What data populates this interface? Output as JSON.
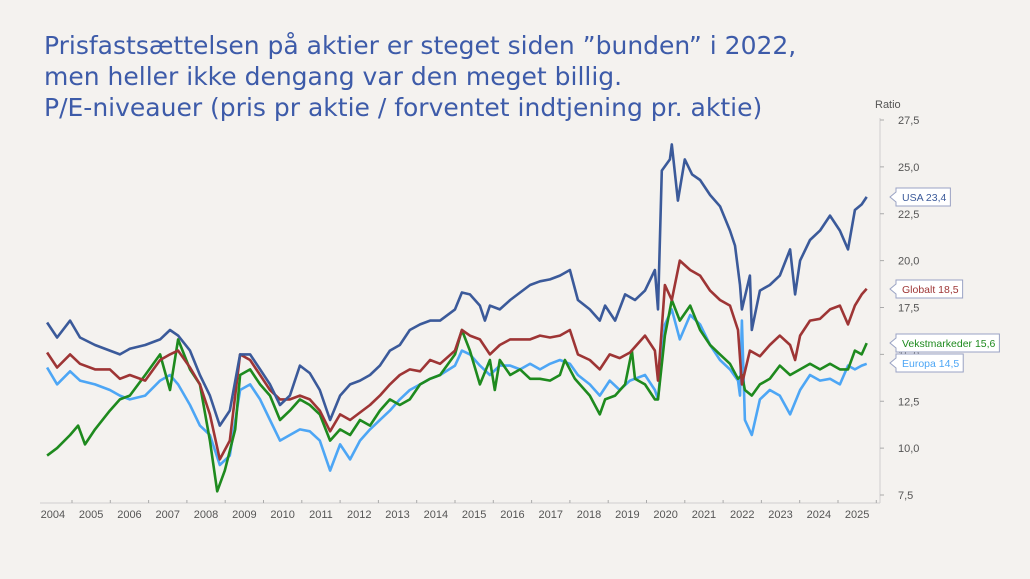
{
  "title_lines": [
    "Prisfastsættelsen på aktier er steget siden ”bunden” i 2022,",
    "men heller ikke dengang var den meget billig.",
    "P/E-niveauer (pris pr aktie / forventet indtjening pr. aktie)"
  ],
  "chart_data": {
    "type": "line",
    "title": "P/E-niveauer (pris pr aktie / forventet indtjening pr. aktie)",
    "ylabel": "Ratio",
    "xlabel": "",
    "ylim": [
      7.5,
      27.5
    ],
    "xlim": [
      2004,
      2026
    ],
    "yticks": [
      "27,5",
      "25,0",
      "22,5",
      "20,0",
      "17,5",
      "15,0",
      "12,5",
      "10,0",
      "7,5"
    ],
    "ytick_values": [
      27.5,
      25,
      22.5,
      20,
      17.5,
      15,
      12.5,
      10,
      7.5
    ],
    "xticks": [
      "2004",
      "2005",
      "2006",
      "2007",
      "2008",
      "2009",
      "2010",
      "2011",
      "2012",
      "2013",
      "2014",
      "2015",
      "2016",
      "2017",
      "2018",
      "2019",
      "2020",
      "2021",
      "2022",
      "2023",
      "2024",
      "2025"
    ],
    "grid": false,
    "legend": "end-of-line callouts on right",
    "series": [
      {
        "name": "USA",
        "label": "USA 23,4",
        "last": 23.4,
        "color": "#3b5a9a",
        "x": [
          2004.35,
          2004.61,
          2004.95,
          2005.21,
          2005.6,
          2005.99,
          2006.25,
          2006.51,
          2006.91,
          2007.3,
          2007.56,
          2007.77,
          2008.08,
          2008.34,
          2008.6,
          2008.86,
          2009.12,
          2009.39,
          2009.65,
          2009.91,
          2010.17,
          2010.43,
          2010.69,
          2010.95,
          2011.21,
          2011.47,
          2011.74,
          2012.0,
          2012.26,
          2012.52,
          2012.78,
          2013.04,
          2013.3,
          2013.56,
          2013.82,
          2014.09,
          2014.35,
          2014.61,
          2015.0,
          2015.18,
          2015.39,
          2015.65,
          2015.78,
          2015.91,
          2016.17,
          2016.44,
          2016.7,
          2016.96,
          2017.22,
          2017.48,
          2017.74,
          2018.0,
          2018.21,
          2018.52,
          2018.78,
          2018.92,
          2019.18,
          2019.44,
          2019.7,
          2019.96,
          2020.22,
          2020.3,
          2020.4,
          2020.61,
          2020.66,
          2020.82,
          2021.0,
          2021.19,
          2021.4,
          2021.66,
          2021.92,
          2022.18,
          2022.31,
          2022.44,
          2022.49,
          2022.7,
          2022.75,
          2022.96,
          2023.22,
          2023.48,
          2023.75,
          2023.88,
          2024.01,
          2024.27,
          2024.53,
          2024.79,
          2025.05,
          2025.26,
          2025.44,
          2025.62,
          2025.75
        ],
        "y": [
          16.7,
          15.9,
          16.8,
          15.9,
          15.5,
          15.2,
          15.0,
          15.3,
          15.5,
          15.8,
          16.3,
          16.0,
          15.2,
          13.9,
          12.8,
          11.2,
          12.0,
          15.0,
          15.0,
          14.2,
          13.4,
          12.3,
          12.8,
          14.4,
          14.0,
          13.1,
          11.5,
          12.8,
          13.4,
          13.6,
          13.9,
          14.4,
          15.2,
          15.5,
          16.3,
          16.6,
          16.8,
          16.8,
          17.4,
          18.3,
          18.2,
          17.6,
          16.8,
          17.6,
          17.4,
          17.9,
          18.3,
          18.7,
          18.9,
          19.0,
          19.2,
          19.5,
          17.9,
          17.4,
          16.8,
          17.6,
          16.8,
          18.2,
          17.9,
          18.4,
          19.5,
          17.4,
          24.8,
          25.4,
          26.2,
          23.2,
          25.4,
          24.6,
          24.3,
          23.5,
          22.9,
          21.6,
          20.8,
          18.7,
          17.4,
          19.2,
          16.3,
          18.4,
          18.7,
          19.2,
          20.6,
          18.2,
          20.0,
          21.1,
          21.6,
          22.4,
          21.6,
          20.6,
          22.7,
          23.0,
          23.4
        ]
      },
      {
        "name": "Globalt",
        "label": "Globalt 18,5",
        "last": 18.5,
        "color": "#9e3535",
        "x": [
          2004.35,
          2004.61,
          2004.95,
          2005.21,
          2005.6,
          2005.99,
          2006.25,
          2006.51,
          2006.91,
          2007.3,
          2007.56,
          2007.77,
          2008.08,
          2008.34,
          2008.6,
          2008.86,
          2009.12,
          2009.39,
          2009.65,
          2009.91,
          2010.17,
          2010.43,
          2010.69,
          2010.95,
          2011.21,
          2011.47,
          2011.74,
          2012.0,
          2012.26,
          2012.52,
          2012.78,
          2013.04,
          2013.3,
          2013.56,
          2013.82,
          2014.09,
          2014.35,
          2014.61,
          2015.0,
          2015.18,
          2015.39,
          2015.65,
          2015.91,
          2016.17,
          2016.44,
          2016.7,
          2016.96,
          2017.22,
          2017.48,
          2017.74,
          2018.0,
          2018.21,
          2018.52,
          2018.78,
          2019.04,
          2019.3,
          2019.57,
          2019.96,
          2020.22,
          2020.3,
          2020.48,
          2020.66,
          2020.87,
          2021.14,
          2021.4,
          2021.66,
          2021.92,
          2022.18,
          2022.39,
          2022.49,
          2022.7,
          2022.96,
          2023.22,
          2023.48,
          2023.75,
          2023.88,
          2024.01,
          2024.27,
          2024.53,
          2024.79,
          2025.05,
          2025.26,
          2025.44,
          2025.62,
          2025.75
        ],
        "y": [
          15.1,
          14.3,
          15.0,
          14.5,
          14.2,
          14.2,
          13.7,
          13.9,
          13.6,
          14.7,
          15.0,
          15.2,
          14.3,
          13.4,
          11.8,
          9.4,
          10.4,
          15.0,
          14.7,
          13.9,
          13.1,
          12.6,
          12.6,
          12.8,
          12.6,
          12.0,
          10.9,
          11.8,
          11.5,
          11.9,
          12.3,
          12.8,
          13.4,
          13.9,
          14.2,
          14.1,
          14.7,
          14.5,
          15.2,
          16.3,
          16.0,
          15.8,
          15.0,
          15.5,
          15.8,
          15.8,
          15.8,
          16.0,
          15.9,
          16.0,
          16.3,
          15.0,
          14.7,
          14.2,
          15.0,
          14.8,
          15.1,
          16.0,
          15.2,
          13.6,
          18.7,
          17.9,
          20.0,
          19.5,
          19.2,
          18.4,
          17.9,
          17.6,
          16.3,
          13.4,
          15.2,
          14.9,
          15.5,
          16.0,
          15.5,
          14.7,
          16.0,
          16.8,
          16.9,
          17.4,
          17.6,
          16.6,
          17.6,
          18.2,
          18.5
        ]
      },
      {
        "name": "Vekstmarkeder",
        "label": "Vekstmarkeder 15,6",
        "last": 15.6,
        "color": "#1e8a1e",
        "x": [
          2004.35,
          2004.61,
          2004.95,
          2005.16,
          2005.34,
          2005.6,
          2005.99,
          2006.25,
          2006.51,
          2006.91,
          2007.3,
          2007.56,
          2007.77,
          2008.08,
          2008.34,
          2008.6,
          2008.79,
          2008.99,
          2009.26,
          2009.39,
          2009.65,
          2009.91,
          2010.17,
          2010.43,
          2010.69,
          2010.95,
          2011.21,
          2011.47,
          2011.74,
          2012.0,
          2012.26,
          2012.52,
          2012.78,
          2013.04,
          2013.3,
          2013.56,
          2013.82,
          2014.09,
          2014.35,
          2014.61,
          2015.0,
          2015.18,
          2015.39,
          2015.65,
          2015.91,
          2016.04,
          2016.17,
          2016.44,
          2016.7,
          2016.96,
          2017.22,
          2017.48,
          2017.74,
          2017.87,
          2018.13,
          2018.52,
          2018.78,
          2018.92,
          2019.18,
          2019.44,
          2019.62,
          2019.7,
          2019.96,
          2020.22,
          2020.3,
          2020.48,
          2020.66,
          2020.87,
          2021.14,
          2021.4,
          2021.66,
          2021.92,
          2022.18,
          2022.39,
          2022.49,
          2022.57,
          2022.75,
          2022.96,
          2023.22,
          2023.48,
          2023.75,
          2024.01,
          2024.27,
          2024.53,
          2024.79,
          2025.05,
          2025.26,
          2025.44,
          2025.62,
          2025.75
        ],
        "y": [
          9.6,
          10.0,
          10.7,
          11.2,
          10.2,
          11.0,
          12.0,
          12.6,
          12.8,
          13.9,
          15.0,
          13.1,
          15.8,
          14.2,
          13.4,
          10.4,
          7.7,
          8.8,
          11.0,
          13.9,
          14.2,
          13.4,
          12.8,
          11.5,
          12.0,
          12.6,
          12.3,
          11.8,
          10.4,
          11.0,
          10.7,
          11.5,
          11.2,
          12.0,
          12.6,
          12.3,
          12.6,
          13.4,
          13.7,
          13.9,
          15.0,
          16.3,
          15.2,
          13.4,
          14.7,
          13.1,
          14.7,
          13.9,
          14.2,
          13.7,
          13.7,
          13.6,
          13.9,
          14.7,
          13.7,
          12.8,
          11.8,
          12.6,
          12.8,
          13.4,
          15.2,
          13.7,
          13.4,
          12.6,
          12.6,
          16.0,
          17.9,
          16.8,
          17.6,
          16.3,
          15.5,
          15.0,
          14.5,
          13.7,
          13.9,
          13.1,
          12.8,
          13.4,
          13.7,
          14.4,
          13.9,
          14.2,
          14.5,
          14.2,
          14.5,
          14.2,
          14.2,
          15.2,
          15.0,
          15.6
        ]
      },
      {
        "name": "Europa",
        "label": "Europa 14,5",
        "last": 14.5,
        "color": "#4da6f5",
        "x": [
          2004.35,
          2004.61,
          2004.95,
          2005.21,
          2005.6,
          2005.99,
          2006.25,
          2006.51,
          2006.91,
          2007.3,
          2007.56,
          2007.77,
          2008.08,
          2008.34,
          2008.6,
          2008.86,
          2009.12,
          2009.39,
          2009.65,
          2009.91,
          2010.17,
          2010.43,
          2010.69,
          2010.95,
          2011.21,
          2011.47,
          2011.74,
          2012.0,
          2012.26,
          2012.52,
          2012.78,
          2013.04,
          2013.3,
          2013.56,
          2013.82,
          2014.09,
          2014.35,
          2014.61,
          2015.0,
          2015.18,
          2015.39,
          2015.65,
          2015.91,
          2016.17,
          2016.44,
          2016.7,
          2016.96,
          2017.22,
          2017.48,
          2017.74,
          2018.0,
          2018.21,
          2018.52,
          2018.78,
          2019.04,
          2019.3,
          2019.57,
          2019.96,
          2020.22,
          2020.3,
          2020.48,
          2020.66,
          2020.87,
          2021.14,
          2021.4,
          2021.66,
          2021.92,
          2022.18,
          2022.39,
          2022.44,
          2022.49,
          2022.57,
          2022.75,
          2022.96,
          2023.22,
          2023.48,
          2023.75,
          2024.01,
          2024.27,
          2024.53,
          2024.79,
          2025.05,
          2025.26,
          2025.44,
          2025.62,
          2025.75
        ],
        "y": [
          14.3,
          13.4,
          14.1,
          13.6,
          13.4,
          13.1,
          12.8,
          12.6,
          12.8,
          13.6,
          13.9,
          13.4,
          12.3,
          11.2,
          10.7,
          9.1,
          9.6,
          13.1,
          13.4,
          12.6,
          11.5,
          10.4,
          10.7,
          11.0,
          10.9,
          10.4,
          8.8,
          10.2,
          9.4,
          10.4,
          11.0,
          11.5,
          12.0,
          12.6,
          13.1,
          13.4,
          13.7,
          13.9,
          14.4,
          15.2,
          15.0,
          14.4,
          13.9,
          14.4,
          14.4,
          14.2,
          14.5,
          14.2,
          14.5,
          14.7,
          14.5,
          13.9,
          13.4,
          12.8,
          13.6,
          13.1,
          13.6,
          13.9,
          13.1,
          12.6,
          16.6,
          17.4,
          15.8,
          17.1,
          16.6,
          15.5,
          14.7,
          14.2,
          13.6,
          12.8,
          16.8,
          11.5,
          10.7,
          12.6,
          13.1,
          12.8,
          11.8,
          13.1,
          13.9,
          13.6,
          13.7,
          13.4,
          14.4,
          14.2,
          14.4,
          14.5
        ]
      }
    ]
  }
}
